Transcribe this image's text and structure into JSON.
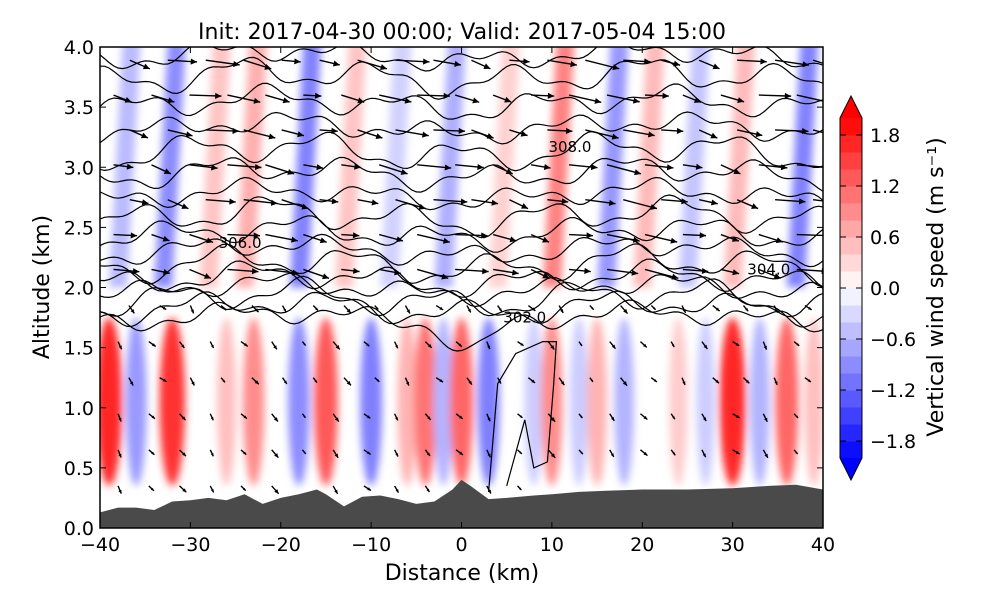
{
  "chart_data": {
    "type": "heatmap",
    "title": "Init: 2017-04-30 00:00; Valid: 2017-05-04 15:00",
    "xlabel": "Distance (km)",
    "ylabel": "Altitude (km)",
    "xlim": [
      -40,
      40
    ],
    "ylim": [
      0.0,
      4.0
    ],
    "x_ticks": [
      -40,
      -30,
      -20,
      -10,
      0,
      10,
      20,
      30,
      40
    ],
    "y_ticks": [
      "0.0",
      "0.5",
      "1.0",
      "1.5",
      "2.0",
      "2.5",
      "3.0",
      "3.5",
      "4.0"
    ],
    "colorbar": {
      "label": "Vertical wind speed (m s⁻¹)",
      "range": [
        -2.0,
        2.0
      ],
      "extend": "both",
      "ticks": [
        "−1.8",
        "−1.2",
        "−0.6",
        "0.0",
        "0.6",
        "1.2",
        "1.8"
      ],
      "tick_values": [
        -1.8,
        -1.2,
        -0.6,
        0.0,
        0.6,
        1.2,
        1.8
      ],
      "neg_color": "#0000ff",
      "mid_color": "#ffffff",
      "pos_color": "#ff0000"
    },
    "terrain": {
      "color": "#4a4a4a",
      "x": [
        -40,
        -38,
        -36,
        -34,
        -32,
        -30,
        -28,
        -26,
        -24,
        -22,
        -20,
        -18,
        -16,
        -15,
        -13,
        -11,
        -9,
        -7,
        -5,
        -3,
        -1,
        0,
        1,
        3,
        5,
        8,
        10,
        13,
        16,
        20,
        25,
        30,
        34,
        37,
        40
      ],
      "alt": [
        0.13,
        0.17,
        0.17,
        0.15,
        0.22,
        0.23,
        0.25,
        0.23,
        0.28,
        0.2,
        0.25,
        0.28,
        0.32,
        0.28,
        0.18,
        0.26,
        0.27,
        0.24,
        0.2,
        0.22,
        0.32,
        0.4,
        0.35,
        0.24,
        0.25,
        0.27,
        0.28,
        0.3,
        0.31,
        0.32,
        0.32,
        0.33,
        0.35,
        0.36,
        0.32
      ]
    },
    "w_field": {
      "units": "m s-1",
      "upper_columns": [
        {
          "x": -38,
          "w": -0.6
        },
        {
          "x": -33,
          "w": -1.0
        },
        {
          "x": -28,
          "w": 0.5
        },
        {
          "x": -24,
          "w": 0.7
        },
        {
          "x": -18,
          "w": -1.1
        },
        {
          "x": -13,
          "w": 0.5
        },
        {
          "x": -8,
          "w": -0.4
        },
        {
          "x": -2,
          "w": -0.7
        },
        {
          "x": 4,
          "w": 0.4
        },
        {
          "x": 10,
          "w": 1.1
        },
        {
          "x": 16,
          "w": -0.9
        },
        {
          "x": 20,
          "w": 0.6
        },
        {
          "x": 25,
          "w": -0.5
        },
        {
          "x": 30,
          "w": 0.6
        },
        {
          "x": 37,
          "w": -1.1
        }
      ],
      "lower_cells": [
        {
          "x": -39,
          "w": 1.7
        },
        {
          "x": -36,
          "w": -0.8
        },
        {
          "x": -32,
          "w": 1.6
        },
        {
          "x": -26,
          "w": 0.5
        },
        {
          "x": -23,
          "w": 0.9
        },
        {
          "x": -18,
          "w": -0.9
        },
        {
          "x": -15,
          "w": 1.3
        },
        {
          "x": -10,
          "w": -1.0
        },
        {
          "x": -6,
          "w": 0.6
        },
        {
          "x": -4,
          "w": 1.1
        },
        {
          "x": -2,
          "w": -0.6
        },
        {
          "x": 0,
          "w": 1.2
        },
        {
          "x": 3,
          "w": -1.0
        },
        {
          "x": 8,
          "w": -0.4
        },
        {
          "x": 10,
          "w": 0.9
        },
        {
          "x": 13,
          "w": -0.4
        },
        {
          "x": 15,
          "w": 0.6
        },
        {
          "x": 18,
          "w": -0.6
        },
        {
          "x": 24,
          "w": 0.4
        },
        {
          "x": 27,
          "w": -0.4
        },
        {
          "x": 30,
          "w": 1.7
        },
        {
          "x": 33,
          "w": -0.6
        },
        {
          "x": 36,
          "w": 1.2
        },
        {
          "x": 39,
          "w": 0.5
        }
      ]
    },
    "theta_contours": {
      "units": "K",
      "levels_km": [
        1.75,
        1.83,
        1.91,
        1.99,
        2.07,
        2.19,
        2.31,
        2.45,
        2.59,
        2.77,
        2.95,
        3.13,
        3.33,
        3.53,
        3.75,
        3.93
      ],
      "labels": [
        {
          "text": "302.0",
          "x": 7.0,
          "alt": 1.75
        },
        {
          "text": "304.0",
          "x": 34.0,
          "alt": 2.15
        },
        {
          "text": "306.0",
          "x": -24.5,
          "alt": 2.37
        },
        {
          "text": "308.0",
          "x": 12.0,
          "alt": 3.17
        }
      ]
    },
    "wind_vectors": {
      "upper_direction": "mostly eastward (left to right), slight downward tilt",
      "lower_direction": "mostly downward-right, short arrows"
    }
  }
}
